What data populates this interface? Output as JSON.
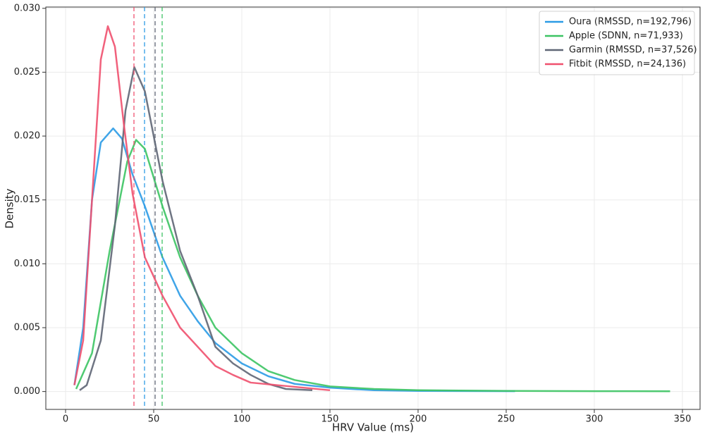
{
  "chart_data": {
    "type": "line",
    "xlabel": "HRV Value (ms)",
    "ylabel": "Density",
    "xlim": [
      -11.2,
      360
    ],
    "ylim": [
      -0.0014,
      0.0301
    ],
    "xticks": [
      0,
      50,
      100,
      150,
      200,
      250,
      300,
      350
    ],
    "yticks": [
      {
        "value": 0,
        "label": "0.000"
      },
      {
        "value": 0.005,
        "label": "0.005"
      },
      {
        "value": 0.01,
        "label": "0.010"
      },
      {
        "value": 0.015,
        "label": "0.015"
      },
      {
        "value": 0.02,
        "label": "0.020"
      },
      {
        "value": 0.025,
        "label": "0.025"
      },
      {
        "value": 0.03,
        "label": "0.030"
      }
    ],
    "grid": true,
    "legend": "upper-right",
    "series": [
      {
        "name": "Oura (RMSSD, n=192,796)",
        "color": "#2b9be6",
        "median": 44.8,
        "x": [
          5,
          10,
          15,
          20,
          27,
          32,
          38,
          45,
          55,
          65,
          75,
          85,
          100,
          115,
          130,
          150,
          175,
          200,
          255
        ],
        "values": [
          0.0005,
          0.005,
          0.015,
          0.0195,
          0.0206,
          0.0198,
          0.017,
          0.0145,
          0.0105,
          0.0075,
          0.0055,
          0.0038,
          0.0022,
          0.0012,
          0.0006,
          0.0003,
          0.0001,
          5e-05,
          3e-05
        ]
      },
      {
        "name": "Apple (SDNN, n=71,933)",
        "color": "#3cc463",
        "median": 54.8,
        "x": [
          6,
          15,
          25,
          35,
          40,
          45,
          55,
          65,
          75,
          85,
          100,
          115,
          130,
          150,
          175,
          200,
          250,
          300,
          343
        ],
        "values": [
          0.0002,
          0.003,
          0.011,
          0.018,
          0.0197,
          0.019,
          0.0145,
          0.0105,
          0.0075,
          0.005,
          0.003,
          0.0016,
          0.0009,
          0.0004,
          0.0002,
          0.0001,
          5e-05,
          3e-05,
          2e-05
        ]
      },
      {
        "name": "Garmin (RMSSD, n=37,526)",
        "color": "#5f6675",
        "median": 50.8,
        "x": [
          8,
          12,
          20,
          28,
          34,
          39,
          45,
          55,
          65,
          75,
          85,
          95,
          105,
          115,
          125,
          140
        ],
        "values": [
          0.0001,
          0.0005,
          0.004,
          0.013,
          0.022,
          0.0254,
          0.0235,
          0.0165,
          0.011,
          0.0075,
          0.0035,
          0.0022,
          0.0013,
          0.0006,
          0.0002,
          0.0001
        ]
      },
      {
        "name": "Fitbit (RMSSD, n=24,136)",
        "color": "#f0506e",
        "median": 38.8,
        "x": [
          5,
          10,
          15,
          20,
          24,
          28,
          33,
          38,
          45,
          55,
          65,
          75,
          85,
          95,
          105,
          120,
          135,
          150
        ],
        "values": [
          0.0005,
          0.004,
          0.015,
          0.026,
          0.0286,
          0.027,
          0.021,
          0.0155,
          0.0105,
          0.0075,
          0.005,
          0.0035,
          0.002,
          0.0013,
          0.0007,
          0.0005,
          0.0003,
          0.0001
        ]
      }
    ]
  }
}
